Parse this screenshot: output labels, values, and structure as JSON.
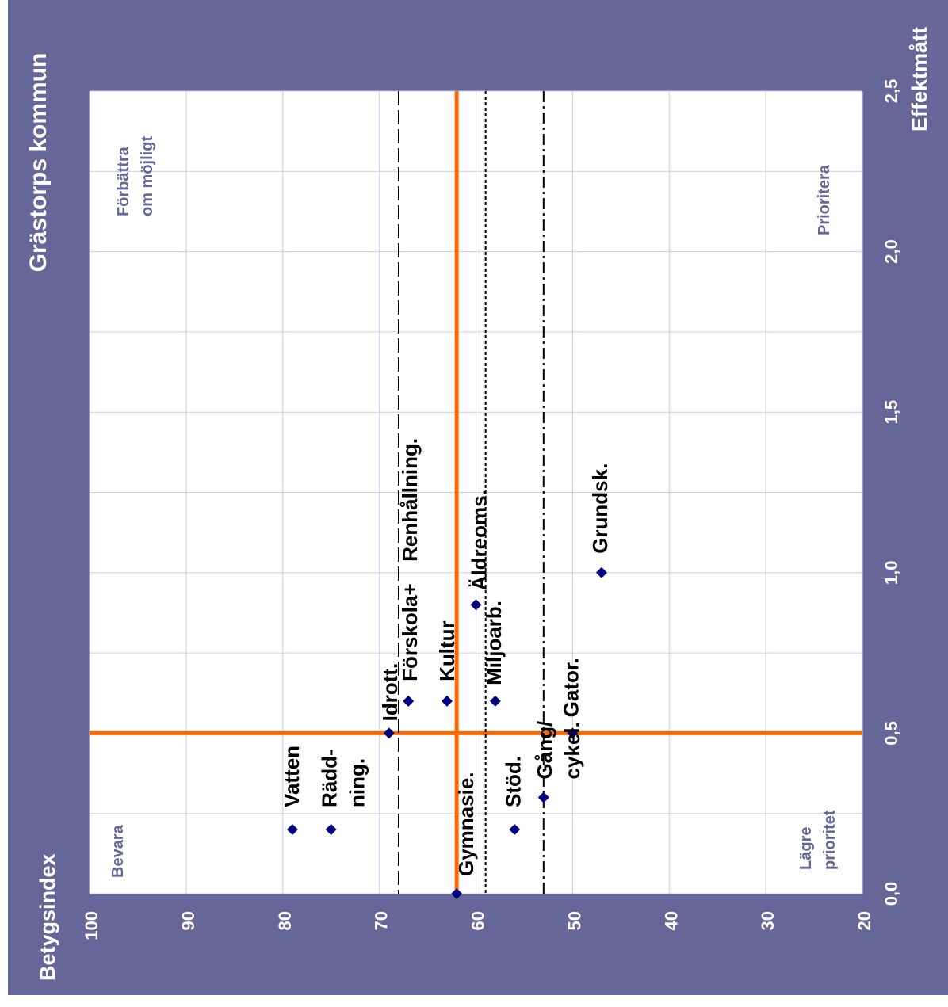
{
  "chart_data": {
    "type": "scatter",
    "title": "Grästorps kommun",
    "xlabel": "Effektmått",
    "ylabel": "Betygsindex",
    "orientation": "rotated-90-counterclockwise",
    "xlim": [
      0.0,
      2.5
    ],
    "ylim": [
      20,
      100
    ],
    "x_ticks": [
      "0,0",
      "0,5",
      "1,0",
      "1,5",
      "2,0",
      "2,5"
    ],
    "x_tick_values": [
      0.0,
      0.5,
      1.0,
      1.5,
      2.0,
      2.5
    ],
    "y_ticks": [
      "100",
      "90",
      "80",
      "70",
      "60",
      "50",
      "40",
      "30",
      "20"
    ],
    "y_tick_values": [
      100,
      90,
      80,
      70,
      60,
      50,
      40,
      30,
      20
    ],
    "grid": true,
    "points": [
      {
        "label": "Vatten",
        "x": 0.2,
        "y": 79
      },
      {
        "label": "Rädd-\nning.",
        "x": 0.2,
        "y": 75
      },
      {
        "label": "Idrott.",
        "x": 0.5,
        "y": 69
      },
      {
        "label": "Förskola+",
        "x": 0.6,
        "y": 67
      },
      {
        "label": "Renhållning.",
        "x": 0.6,
        "y": 67
      },
      {
        "label": "Kultur",
        "x": 0.6,
        "y": 63
      },
      {
        "label": "Gymnasie.",
        "x": 0.0,
        "y": 62
      },
      {
        "label": "Äldreoms.",
        "x": 0.9,
        "y": 60
      },
      {
        "label": "Miljoarb.",
        "x": 0.6,
        "y": 58
      },
      {
        "label": "Stöd.",
        "x": 0.2,
        "y": 56
      },
      {
        "label": "Gång/\ncykel.",
        "x": 0.3,
        "y": 53
      },
      {
        "label": "Gator.",
        "x": 0.5,
        "y": 50
      },
      {
        "label": "Grundsk.",
        "x": 1.0,
        "y": 47
      }
    ],
    "reference_lines": [
      {
        "axis": "x",
        "value": 0.5,
        "style": "solid",
        "color": "#ff6600"
      },
      {
        "axis": "y",
        "value": 62,
        "style": "solid",
        "color": "#ff6600"
      },
      {
        "axis": "y",
        "value": 68,
        "style": "dashed",
        "color": "#000000"
      },
      {
        "axis": "y",
        "value": 59,
        "style": "dotted",
        "color": "#000000"
      },
      {
        "axis": "y",
        "value": 53,
        "style": "dash-dot",
        "color": "#000000"
      }
    ],
    "quadrant_labels": [
      "Bevara",
      "Förbättra\nom möjligt",
      "Prioritera",
      "Lägre\nprioritet"
    ],
    "colors": {
      "background": "#666699",
      "plot_area": "#ffffff",
      "grid": "#ccccee",
      "marker": "#000080",
      "axis_text": "#ffffff",
      "quadrant_text": "#666699",
      "point_label": "#000000"
    }
  }
}
